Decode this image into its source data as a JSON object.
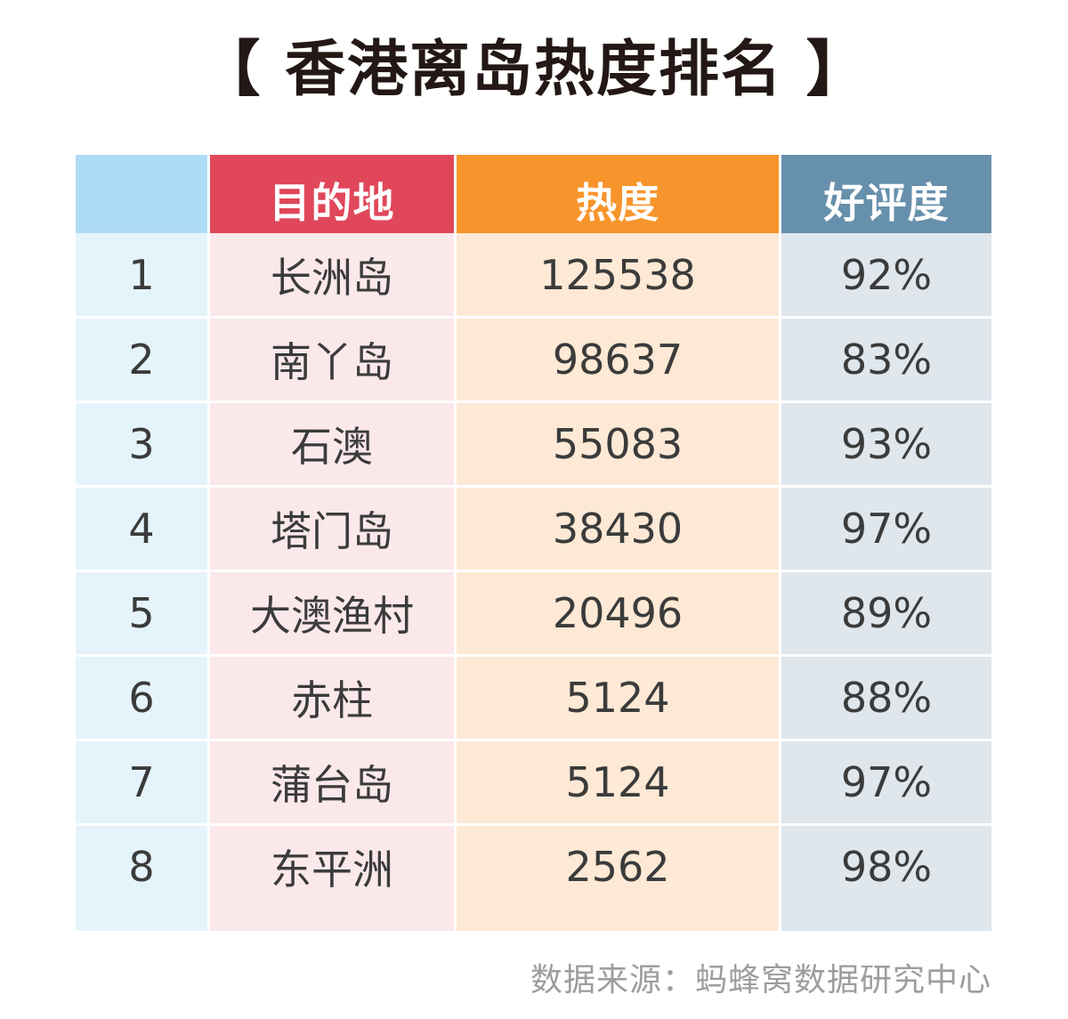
{
  "chart_data": {
    "type": "table",
    "title": "【 香港离岛热度排名 】",
    "columns": [
      "",
      "目的地",
      "热度",
      "好评度"
    ],
    "rows": [
      {
        "rank": "1",
        "destination": "长洲岛",
        "heat": "125538",
        "rating": "92%"
      },
      {
        "rank": "2",
        "destination": "南丫岛",
        "heat": "98637",
        "rating": "83%"
      },
      {
        "rank": "3",
        "destination": "石澳",
        "heat": "55083",
        "rating": "93%"
      },
      {
        "rank": "4",
        "destination": "塔门岛",
        "heat": "38430",
        "rating": "97%"
      },
      {
        "rank": "5",
        "destination": "大澳渔村",
        "heat": "20496",
        "rating": "89%"
      },
      {
        "rank": "6",
        "destination": "赤柱",
        "heat": "5124",
        "rating": "88%"
      },
      {
        "rank": "7",
        "destination": "蒲台岛",
        "heat": "5124",
        "rating": "97%"
      },
      {
        "rank": "8",
        "destination": "东平洲",
        "heat": "2562",
        "rating": "98%"
      }
    ],
    "source": "数据来源：蚂蜂窝数据研究中心",
    "colors": {
      "rank_header": "#aedcf4",
      "rank_body": "#e5f4fb",
      "destination_header": "#e0475a",
      "destination_body": "#fbe8ea",
      "heat_header": "#f7952c",
      "heat_body": "#fde9d5",
      "rating_header": "#6790ac",
      "rating_body": "#dfe6ec"
    }
  }
}
